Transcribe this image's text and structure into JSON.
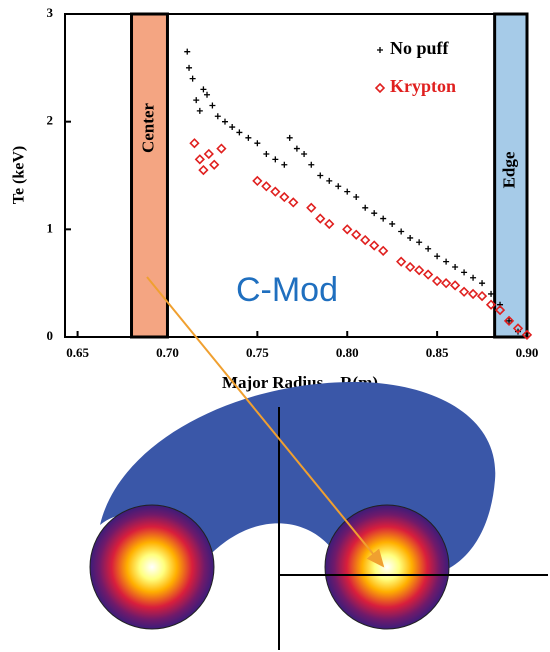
{
  "chart_data": {
    "type": "scatter",
    "xlabel": "Major Radius    R(m)",
    "ylabel": "Te (keV)",
    "annotation": "C-Mod",
    "xlim": [
      0.643,
      0.9
    ],
    "ylim": [
      0,
      3
    ],
    "xticks": [
      {
        "value": 0.65,
        "label": "0.65"
      },
      {
        "value": 0.7,
        "label": "0.70"
      },
      {
        "value": 0.75,
        "label": "0.75"
      },
      {
        "value": 0.8,
        "label": "0.80"
      },
      {
        "value": 0.85,
        "label": "0.85"
      },
      {
        "value": 0.9,
        "label": "0.90"
      }
    ],
    "yticks": [
      0,
      1,
      2,
      3
    ],
    "bands": [
      {
        "label": "Center",
        "range": [
          0.68,
          0.7
        ],
        "color": "#f4a582"
      },
      {
        "label": "Edge",
        "range": [
          0.882,
          0.9
        ],
        "color": "#a6cbe8"
      }
    ],
    "series": [
      {
        "name": "No puff",
        "color": "#000000",
        "marker": "plus",
        "x": [
          0.711,
          0.712,
          0.714,
          0.716,
          0.718,
          0.72,
          0.722,
          0.725,
          0.728,
          0.732,
          0.736,
          0.74,
          0.745,
          0.75,
          0.755,
          0.76,
          0.765,
          0.768,
          0.772,
          0.776,
          0.78,
          0.785,
          0.79,
          0.795,
          0.8,
          0.805,
          0.81,
          0.815,
          0.82,
          0.825,
          0.83,
          0.835,
          0.84,
          0.845,
          0.85,
          0.855,
          0.86,
          0.865,
          0.87,
          0.875,
          0.88,
          0.885,
          0.89,
          0.895
        ],
        "values": [
          2.65,
          2.5,
          2.4,
          2.2,
          2.1,
          2.3,
          2.25,
          2.15,
          2.05,
          2.0,
          1.95,
          1.9,
          1.85,
          1.8,
          1.7,
          1.65,
          1.6,
          1.85,
          1.75,
          1.7,
          1.6,
          1.5,
          1.45,
          1.4,
          1.35,
          1.3,
          1.2,
          1.15,
          1.1,
          1.05,
          0.98,
          0.92,
          0.88,
          0.82,
          0.75,
          0.7,
          0.65,
          0.6,
          0.55,
          0.5,
          0.4,
          0.3,
          0.15,
          0.05
        ]
      },
      {
        "name": "Krypton",
        "color": "#e0201f",
        "marker": "diamond",
        "x": [
          0.715,
          0.718,
          0.72,
          0.723,
          0.726,
          0.73,
          0.75,
          0.755,
          0.76,
          0.765,
          0.77,
          0.78,
          0.785,
          0.79,
          0.8,
          0.805,
          0.81,
          0.815,
          0.82,
          0.83,
          0.835,
          0.84,
          0.845,
          0.85,
          0.855,
          0.86,
          0.865,
          0.87,
          0.875,
          0.88,
          0.885,
          0.89,
          0.895,
          0.9
        ],
        "values": [
          1.8,
          1.65,
          1.55,
          1.7,
          1.6,
          1.75,
          1.45,
          1.4,
          1.35,
          1.3,
          1.25,
          1.2,
          1.1,
          1.05,
          1.0,
          0.95,
          0.9,
          0.85,
          0.8,
          0.7,
          0.65,
          0.62,
          0.58,
          0.52,
          0.5,
          0.48,
          0.42,
          0.4,
          0.38,
          0.3,
          0.25,
          0.15,
          0.08,
          0.02
        ]
      }
    ]
  }
}
